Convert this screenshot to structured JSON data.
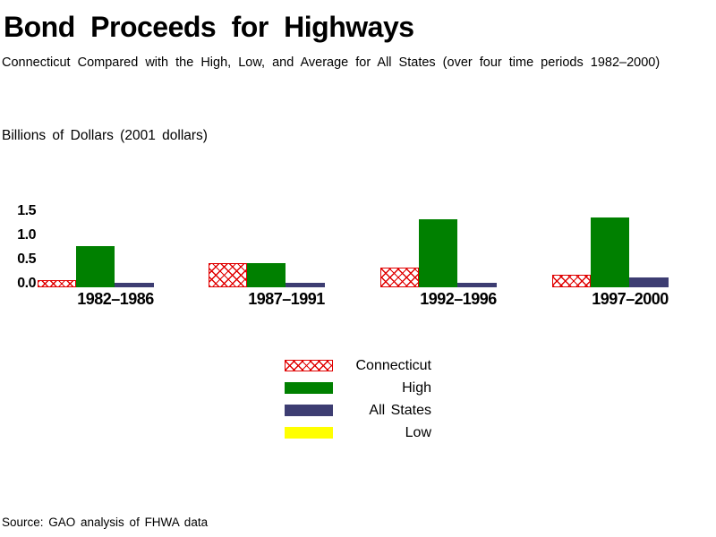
{
  "title": "Bond Proceeds for Highways",
  "subtitle": "Connecticut Compared with the High, Low, and Average for All States (over four time periods 1982–2000)",
  "y_axis_title": "Billions of Dollars (2001 dollars)",
  "source_note": "Source: GAO analysis of FHWA data",
  "colors": {
    "connecticut_red": "#e00000",
    "high_green": "#008000",
    "all_states_navy": "#3d3d72",
    "low_yellow": "#ffff00",
    "text": "#000000",
    "background": "#ffffff"
  },
  "chart_data": {
    "type": "bar",
    "title": "Bond Proceeds for Highways",
    "subtitle": "Connecticut Compared with the High, Low, and Average for All States (over four time periods 1982–2000)",
    "ylabel": "Billions of Dollars (2001 dollars)",
    "categories": [
      "1982–1986",
      "1987–1991",
      "1992–1996",
      "1997–2000"
    ],
    "series": [
      {
        "name": "Connecticut",
        "pattern": "red-crosshatch",
        "color": "#e00000",
        "values": [
          0.15,
          0.5,
          0.4,
          0.25
        ]
      },
      {
        "name": "High",
        "pattern": "solid",
        "color": "#008000",
        "values": [
          0.85,
          0.5,
          1.4,
          1.45
        ]
      },
      {
        "name": "All States",
        "pattern": "solid",
        "color": "#3d3d72",
        "values": [
          0.1,
          0.1,
          0.1,
          0.2
        ]
      },
      {
        "name": "Low",
        "pattern": "solid",
        "color": "#ffff00",
        "values": [
          0,
          0,
          0,
          0
        ]
      }
    ],
    "yticks": [
      0.0,
      0.5,
      1.0,
      1.5
    ],
    "ytick_labels_top_to_bottom": [
      "1.5",
      "1.0",
      "0.5",
      "0.0"
    ],
    "ylim": [
      0,
      1.5
    ],
    "grid": false,
    "axis_lines": false,
    "legend_position": "below-chart-center",
    "legend_text_align": "right"
  },
  "legend": {
    "items": [
      {
        "label": "Connecticut"
      },
      {
        "label": "High"
      },
      {
        "label": "All States"
      },
      {
        "label": "Low"
      }
    ]
  }
}
